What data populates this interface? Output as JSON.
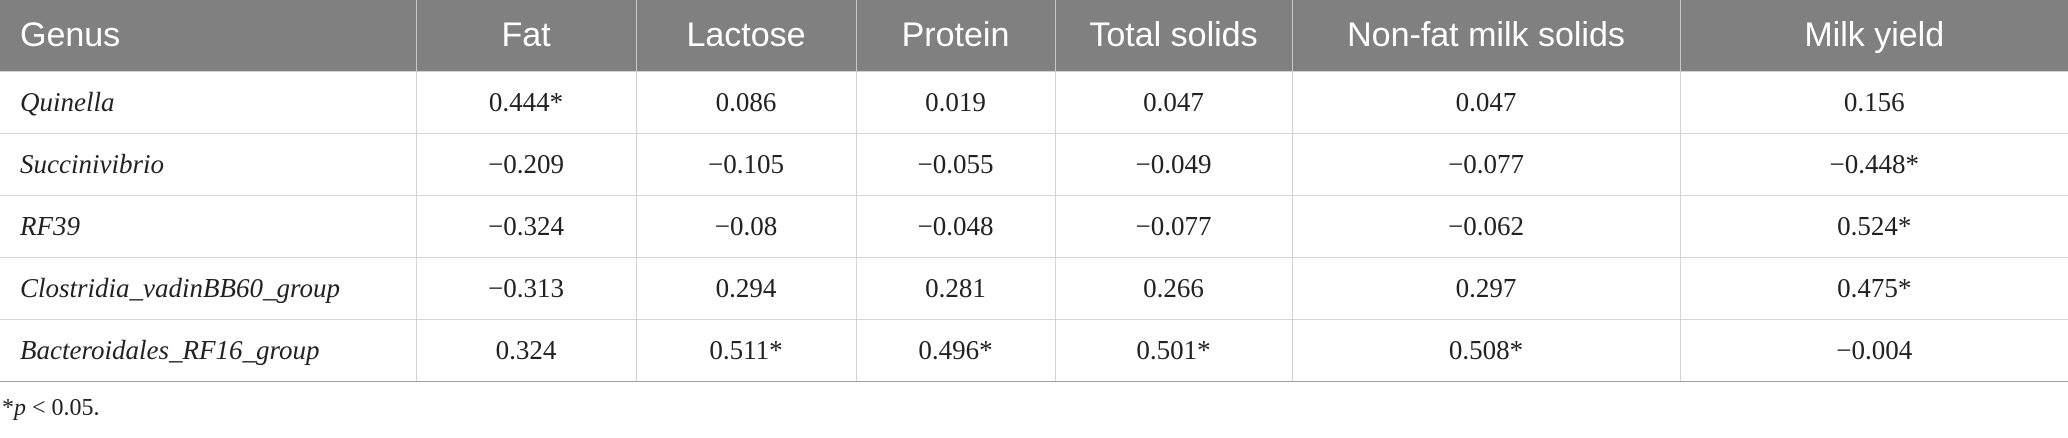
{
  "table": {
    "headers": [
      "Genus",
      "Fat",
      "Lactose",
      "Protein",
      "Total solids",
      "Non-fat milk solids",
      "Milk yield"
    ],
    "rows": [
      [
        "Quinella",
        "0.444*",
        "0.086",
        "0.019",
        "0.047",
        "0.047",
        "0.156"
      ],
      [
        "Succinivibrio",
        "−0.209",
        "−0.105",
        "−0.055",
        "−0.049",
        "−0.077",
        "−0.448*"
      ],
      [
        "RF39",
        "−0.324",
        "−0.08",
        "−0.048",
        "−0.077",
        "−0.062",
        "0.524*"
      ],
      [
        "Clostridia_vadinBB60_group",
        "−0.313",
        "0.294",
        "0.281",
        "0.266",
        "0.297",
        "0.475*"
      ],
      [
        "Bacteroidales_RF16_group",
        "0.324",
        "0.511*",
        "0.496*",
        "0.501*",
        "0.508*",
        "−0.004"
      ]
    ]
  },
  "footnote": {
    "star": "*",
    "p": "p",
    "rest": " < 0.05."
  }
}
